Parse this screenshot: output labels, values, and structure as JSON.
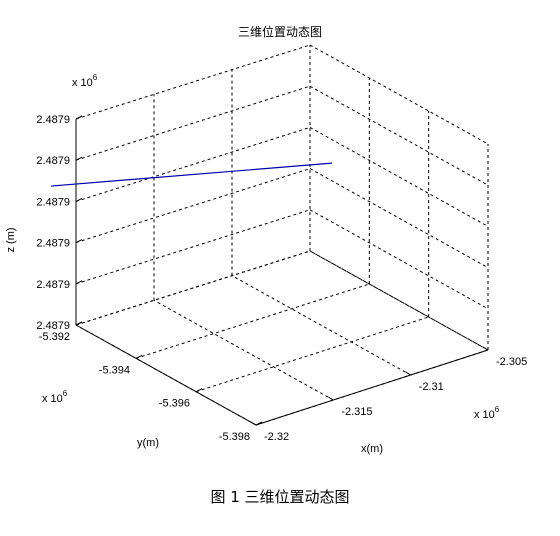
{
  "chart_data": {
    "type": "line",
    "view": "3d",
    "title": "三维位置动态图",
    "xlabel": "x(m)",
    "ylabel": "y(m)",
    "zlabel": "z (m)",
    "x_exponent_label": "x 10",
    "y_exponent_label": "x 10",
    "z_exponent_label": "x 10",
    "exponent": "6",
    "x_ticks": [
      "-2.32",
      "-2.315",
      "-2.31",
      "-2.305"
    ],
    "y_ticks": [
      "-5.392",
      "-5.394",
      "-5.396",
      "-5.398"
    ],
    "z_ticks": [
      "2.4879",
      "2.4879",
      "2.4879",
      "2.4879",
      "2.4879",
      "2.4879"
    ],
    "grid": true,
    "line_color": "#0000aa",
    "series": [
      {
        "x": [
          -2.3214,
          -2.3034
        ],
        "y": [
          -5.3919,
          -5.3919
        ],
        "z": [
          0.7,
          0.38
        ]
      }
    ]
  },
  "caption": "图 1  三维位置动态图"
}
